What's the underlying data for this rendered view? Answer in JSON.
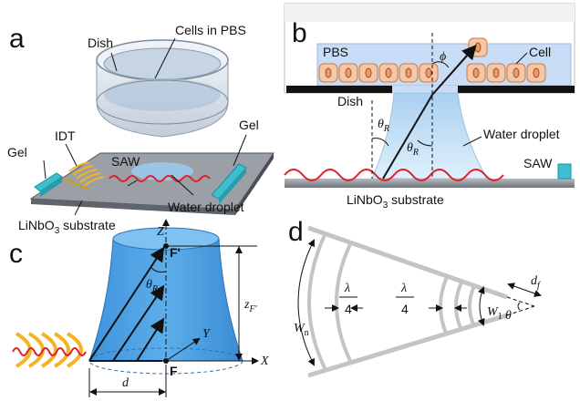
{
  "panels": {
    "a": {
      "letter": "a",
      "labels": {
        "cells_in_pbs": "Cells in PBS",
        "dish": "Dish",
        "idt": "IDT",
        "gel_left": "Gel",
        "gel_right": "Gel",
        "saw": "SAW",
        "substrate": "LiNbO3 substrate",
        "substrate_base": "LiNbO",
        "substrate_sub": "3",
        "substrate_rest": " substrate",
        "water_droplet": "Water droplet"
      }
    },
    "b": {
      "letter": "b",
      "labels": {
        "pbs": "PBS",
        "cell": "Cell",
        "dish": "Dish",
        "phi": "ϕ",
        "theta_r_1": "θR",
        "theta_r_2": "θR",
        "theta": "θ",
        "r_sub": "R",
        "water_droplet": "Water droplet",
        "saw": "SAW",
        "substrate_base": "LiNbO",
        "substrate_sub": "3",
        "substrate_rest": " substrate"
      }
    },
    "c": {
      "letter": "c",
      "labels": {
        "z_axis": "Z",
        "f_prime": "F'",
        "theta": "θ",
        "r_sub": "R",
        "y_axis": "Y",
        "x_axis": "X",
        "f": "F",
        "d": "d",
        "zf_base": "z",
        "zf_sub": "F'"
      }
    },
    "d": {
      "letter": "d",
      "labels": {
        "lambda": "λ",
        "four": "4",
        "lambda2": "λ",
        "four2": "4",
        "wn_base": "W",
        "wn_sub": "n",
        "w1_base": "W",
        "w1_sub": "1",
        "theta": "θ",
        "df_base": "d",
        "df_sub": "f"
      }
    }
  },
  "colors": {
    "droplet_blue": "#5aa9e6",
    "gel_cyan": "#3dbfcf",
    "saw_red": "#e0202a",
    "idt_gold": "#f5b324",
    "pbs_fill": "#c9dcf5",
    "cell_fill": "#f6c7a6",
    "substrate_gray": "#8a8f96"
  }
}
